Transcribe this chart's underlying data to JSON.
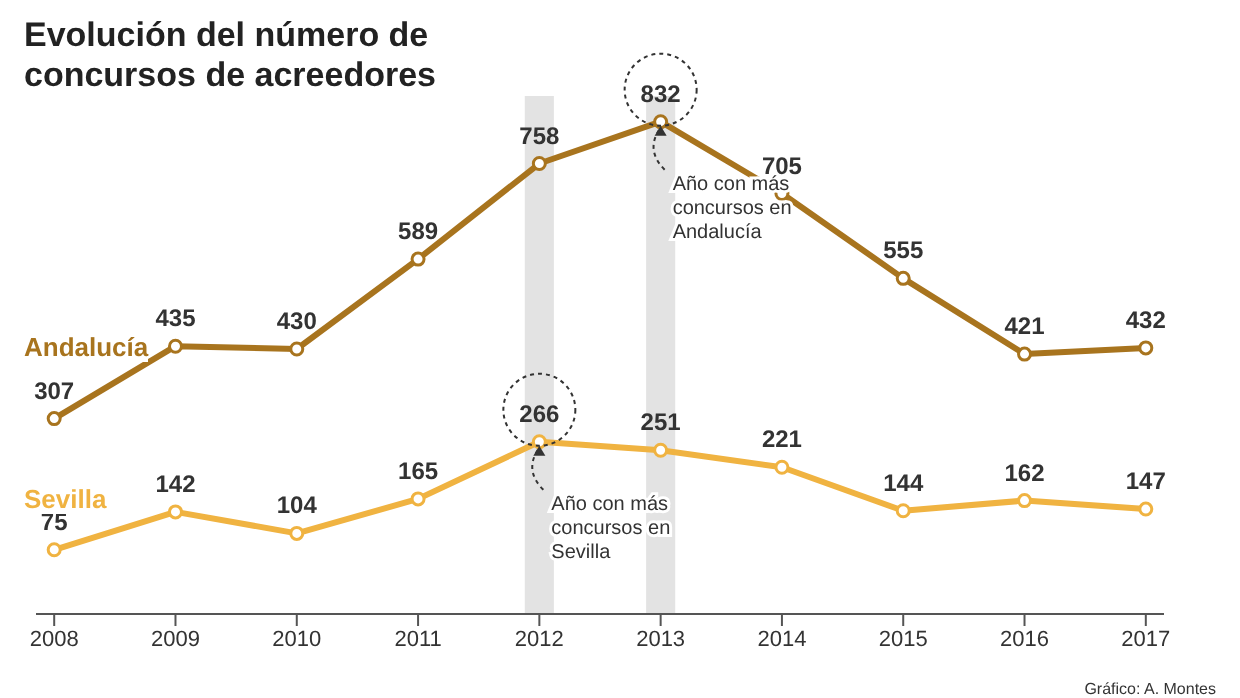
{
  "chart_data": {
    "type": "line",
    "title": "Evolución del número de concursos de acreedores",
    "categories": [
      "2008",
      "2009",
      "2010",
      "2011",
      "2012",
      "2013",
      "2014",
      "2015",
      "2016",
      "2017"
    ],
    "series": [
      {
        "name": "Andalucía",
        "color": "#a8741e",
        "values": [
          307,
          435,
          430,
          589,
          758,
          832,
          705,
          555,
          421,
          432
        ]
      },
      {
        "name": "Sevilla",
        "color": "#f0b341",
        "values": [
          75,
          142,
          104,
          165,
          266,
          251,
          221,
          144,
          162,
          147
        ]
      }
    ],
    "data_labels": true,
    "marker": "circle",
    "line_style": "solid",
    "tick_labels": "x",
    "bands": [
      {
        "axis": "x",
        "from": "2012",
        "to": "2012",
        "color": "#dcdcdc"
      },
      {
        "axis": "x",
        "from": "2013",
        "to": "2013",
        "color": "#dcdcdc"
      }
    ],
    "annotations": [
      {
        "text": "Año con más concursos en Andalucía",
        "x": "2013",
        "y": 832
      },
      {
        "text": "Año con más concursos en Sevilla",
        "x": "2012",
        "y": 266
      },
      "Gráfico: A. Montes"
    ]
  }
}
